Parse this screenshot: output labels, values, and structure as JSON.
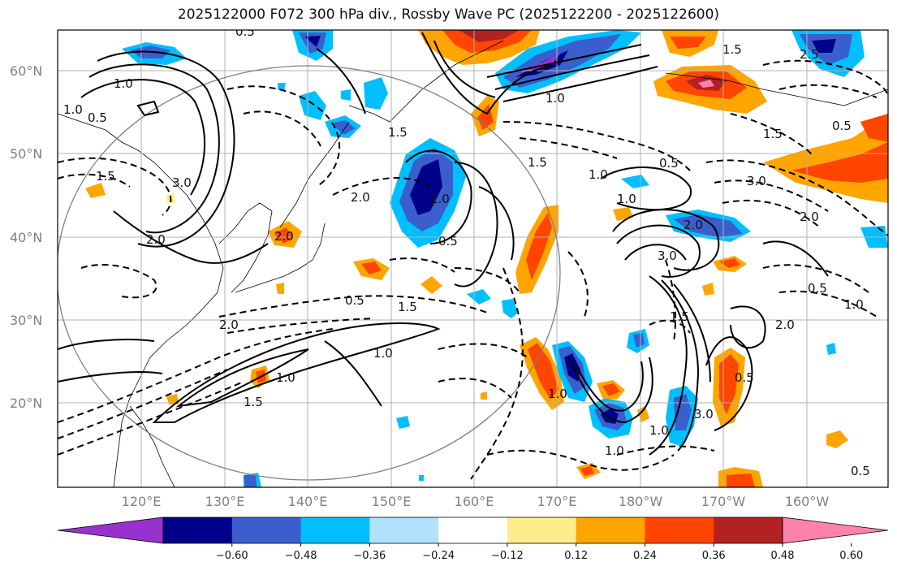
{
  "title": "2025122000 F072 300 hPa div., Rossby Wave PC (2025122200 - 2025122600)",
  "lat_labels": [
    "60°N",
    "50°N",
    "40°N",
    "30°N",
    "20°N"
  ],
  "lon_labels": [
    "120°E",
    "130°E",
    "140°E",
    "150°E",
    "160°E",
    "170°E",
    "180°W",
    "170°W",
    "160°W"
  ],
  "colorbar": {
    "ticks": [
      "−0.60",
      "−0.48",
      "−0.36",
      "−0.24",
      "−0.12",
      "0.12",
      "0.24",
      "0.36",
      "0.48",
      "0.60"
    ],
    "colors": [
      "#9932cc",
      "#00008b",
      "#3a5fcd",
      "#00bfff",
      "#b0e2ff",
      "#ffffff",
      "#ffec8b",
      "#ffa500",
      "#ff4500",
      "#b22222",
      "#ff82ab"
    ]
  },
  "contour_labels": [
    "0.5",
    "1.0",
    "1.5",
    "2.0",
    "2.5",
    "3.0"
  ]
}
